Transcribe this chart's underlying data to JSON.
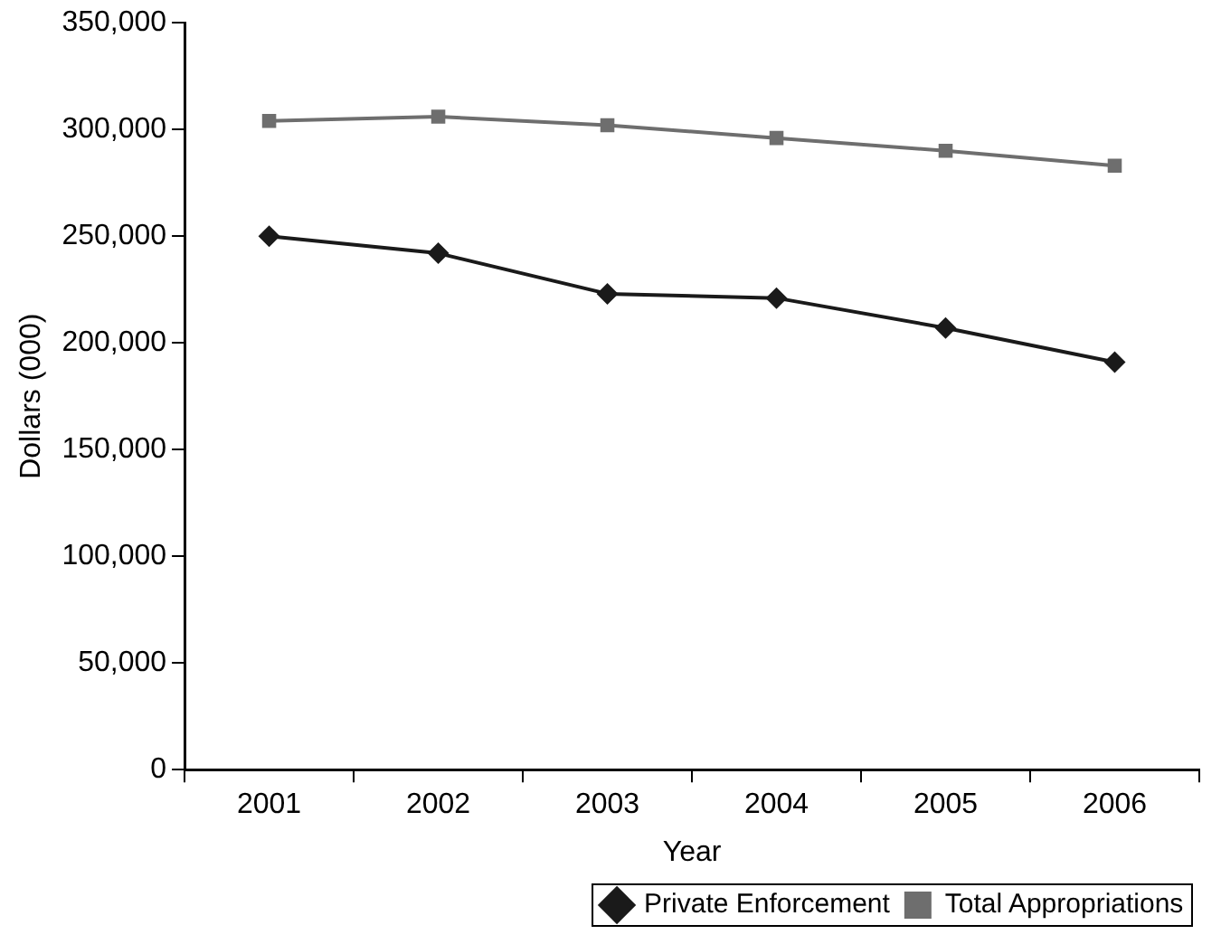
{
  "chart_data": {
    "type": "line",
    "xlabel": "Year",
    "ylabel": "Dollars (000)",
    "categories": [
      "2001",
      "2002",
      "2003",
      "2004",
      "2005",
      "2006"
    ],
    "series": [
      {
        "name": "Private Enforcement",
        "color": "#1a1a1a",
        "marker": "diamond",
        "values": [
          250000,
          242000,
          223000,
          221000,
          207000,
          191000
        ]
      },
      {
        "name": "Total Appropriations",
        "color": "#6e6e6e",
        "marker": "square",
        "values": [
          304000,
          306000,
          302000,
          296000,
          290000,
          283000
        ]
      }
    ],
    "ylim": [
      0,
      350000
    ],
    "yticks": [
      0,
      {
        "value": 50000,
        "label": "50,000"
      },
      {
        "value": 100000,
        "label": "100,000"
      },
      {
        "value": 150000,
        "label": "150,000"
      },
      {
        "value": 200000,
        "label": "200,000"
      },
      {
        "value": 250000,
        "label": "250,000"
      },
      {
        "value": 300000,
        "label": "300,000"
      },
      {
        "value": 350000,
        "label": "350,000"
      }
    ],
    "grid": false,
    "legend": "bottom",
    "line_style": "solid"
  }
}
